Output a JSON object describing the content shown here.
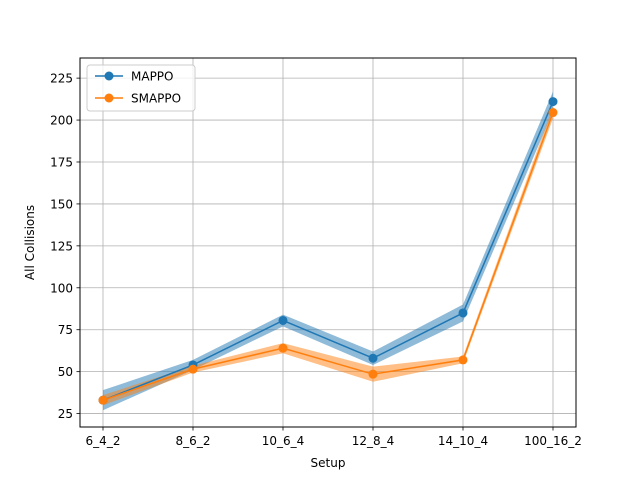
{
  "chart_data": {
    "type": "line",
    "title": "",
    "xlabel": "Setup",
    "ylabel": "All Collisions",
    "categories": [
      "6_4_2",
      "8_6_2",
      "10_6_4",
      "12_8_4",
      "14_10_4",
      "100_16_2"
    ],
    "ylim": [
      17,
      237
    ],
    "yticks": [
      25,
      50,
      75,
      100,
      125,
      150,
      175,
      200,
      225
    ],
    "grid": true,
    "legend_position": "top-left",
    "series": [
      {
        "name": "MAPPO",
        "color": "#1f77b4",
        "values": [
          33,
          54,
          80.5,
          58,
          85,
          211
        ],
        "lower": [
          27,
          51,
          77,
          54,
          80,
          205
        ],
        "upper": [
          39,
          57,
          84,
          62,
          90,
          217
        ]
      },
      {
        "name": "SMAPPO",
        "color": "#ff7f0e",
        "values": [
          33,
          51.5,
          64,
          48.5,
          57,
          204.5
        ],
        "lower": [
          30,
          49.5,
          61,
          44,
          55,
          201
        ],
        "upper": [
          36,
          53.5,
          67,
          53,
          59,
          208
        ]
      }
    ]
  }
}
